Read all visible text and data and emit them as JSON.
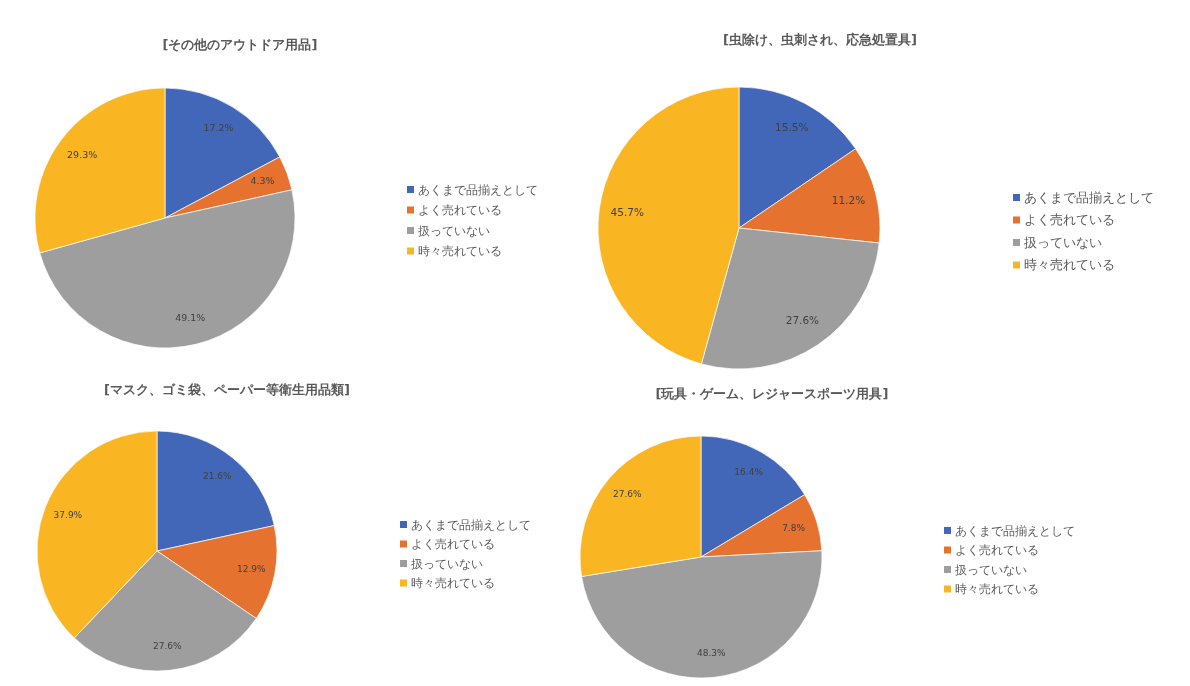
{
  "chart_data": [
    {
      "type": "pie",
      "title": "[その他のアウトドア用品]",
      "categories": [
        "あくまで品揃えとして",
        "よく売れている",
        "扱っていない",
        "時々売れている"
      ],
      "values": [
        17.2,
        4.3,
        49.1,
        29.3
      ],
      "value_labels": [
        "17.2%",
        "4.3%",
        "49.1%",
        "29.3%"
      ],
      "colors": [
        "#4267b8",
        "#e5722e",
        "#9e9e9e",
        "#fab622"
      ],
      "legend": "right"
    },
    {
      "type": "pie",
      "title": "[虫除け、虫刺され、応急処置具]",
      "categories": [
        "あくまで品揃えとして",
        "よく売れている",
        "扱っていない",
        "時々売れている"
      ],
      "values": [
        15.5,
        11.2,
        27.6,
        45.7
      ],
      "value_labels": [
        "15.5%",
        "11.2%",
        "27.6%",
        "45.7%"
      ],
      "colors": [
        "#4267b8",
        "#e5722e",
        "#9e9e9e",
        "#fab622"
      ],
      "legend": "right"
    },
    {
      "type": "pie",
      "title": "[マスク、ゴミ袋、ペーパー等衛生用品類]",
      "categories": [
        "あくまで品揃えとして",
        "よく売れている",
        "扱っていない",
        "時々売れている"
      ],
      "values": [
        21.6,
        12.9,
        27.6,
        37.9
      ],
      "value_labels": [
        "21.6%",
        "12.9%",
        "27.6%",
        "37.9%"
      ],
      "colors": [
        "#4267b8",
        "#e5722e",
        "#9e9e9e",
        "#fab622"
      ],
      "legend": "right"
    },
    {
      "type": "pie",
      "title": "[玩具・ゲーム、レジャースポーツ用具]",
      "categories": [
        "あくまで品揃えとして",
        "よく売れている",
        "扱っていない",
        "時々売れている"
      ],
      "values": [
        16.4,
        7.8,
        48.3,
        27.6
      ],
      "value_labels": [
        "16.4%",
        "7.8%",
        "48.3%",
        "27.6%"
      ],
      "colors": [
        "#4267b8",
        "#e5722e",
        "#9e9e9e",
        "#fab622"
      ],
      "legend": "right"
    }
  ]
}
